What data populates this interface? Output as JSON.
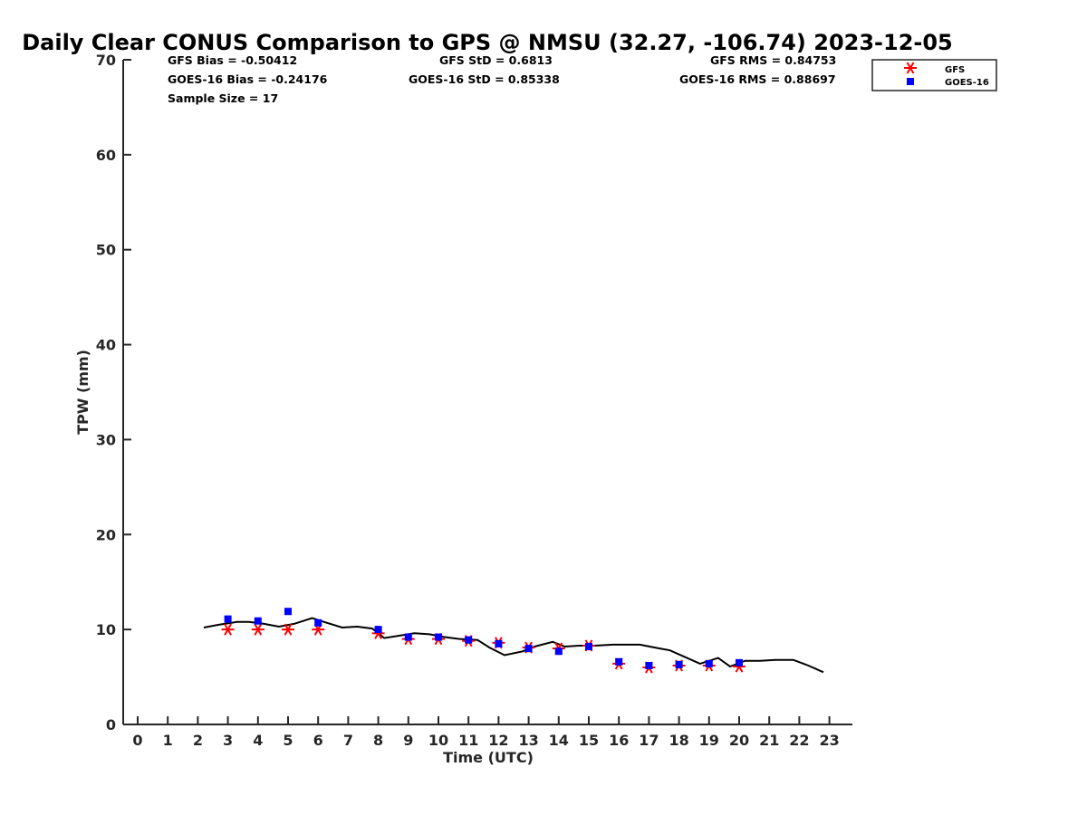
{
  "title": "Daily Clear CONUS Comparison to GPS @ NMSU (32.27, -106.74) 2023-12-05",
  "stats": {
    "gfs_bias": "GFS Bias = -0.50412",
    "goes_bias": "GOES-16 Bias = -0.24176",
    "sample_size": "Sample Size = 17",
    "gfs_std": "GFS StD = 0.6813",
    "goes_std": "GOES-16 StD = 0.85338",
    "gfs_rms": "GFS RMS = 0.84753",
    "goes_rms": "GOES-16 RMS = 0.88697"
  },
  "colors": {
    "gfs": "#ff0000",
    "goes": "#0000ff",
    "gps": "#000000",
    "axis": "#262626"
  },
  "legend": {
    "gfs": "GFS",
    "goes": "GOES-16",
    "placement": "top-right, outside"
  },
  "chart_data": {
    "type": "line",
    "xlabel": "Time (UTC)",
    "ylabel": "TPW (mm)",
    "xlim": [
      -0.5,
      23.7
    ],
    "ylim": [
      0,
      70
    ],
    "xticks": [
      "0",
      "1",
      "2",
      "3",
      "4",
      "5",
      "6",
      "7",
      "8",
      "9",
      "10",
      "11",
      "12",
      "13",
      "14",
      "15",
      "16",
      "17",
      "18",
      "19",
      "20",
      "21",
      "22",
      "23"
    ],
    "yticks": [
      "0",
      "10",
      "20",
      "30",
      "40",
      "50",
      "60",
      "70"
    ],
    "grid": false,
    "series": [
      {
        "marker": "line",
        "x": [
          2.2,
          2.7,
          3.3,
          3.7,
          4.2,
          4.7,
          5.2,
          5.8,
          6.2,
          6.8,
          7.3,
          7.8,
          8.2,
          8.6,
          9.2,
          9.7,
          10.2,
          10.7,
          11.3,
          11.7,
          12.2,
          12.8,
          13.2,
          13.8,
          14.2,
          14.7,
          15.2,
          15.8,
          16.2,
          16.7,
          17.2,
          17.7,
          18.2,
          18.7,
          19.3,
          19.7,
          20.2,
          20.7,
          21.2,
          21.8,
          22.3,
          22.8
        ],
        "y": [
          10.2,
          10.5,
          10.8,
          10.8,
          10.6,
          10.3,
          10.6,
          11.2,
          10.8,
          10.2,
          10.3,
          10.1,
          9.1,
          9.3,
          9.6,
          9.5,
          9.2,
          9.0,
          8.9,
          8.1,
          7.3,
          7.7,
          8.2,
          8.7,
          8.2,
          8.3,
          8.3,
          8.4,
          8.4,
          8.4,
          8.1,
          7.8,
          7.1,
          6.4,
          7.0,
          6.1,
          6.7,
          6.7,
          6.8,
          6.8,
          6.2,
          5.5
        ]
      },
      {
        "name": "GFS",
        "marker": "asterisk",
        "x": [
          3,
          4,
          5,
          6,
          8,
          9,
          10,
          11,
          12,
          13,
          14,
          15,
          16,
          17,
          18,
          19,
          20
        ],
        "y": [
          10.0,
          10.0,
          10.0,
          10.0,
          9.6,
          9.0,
          9.0,
          8.8,
          8.6,
          8.1,
          8.0,
          8.3,
          6.4,
          6.0,
          6.2,
          6.2,
          6.1
        ]
      },
      {
        "name": "GOES-16",
        "marker": "square",
        "x": [
          3,
          4,
          5,
          6,
          8,
          9,
          10,
          11,
          12,
          13,
          14,
          15,
          16,
          17,
          18,
          19,
          20
        ],
        "y": [
          11.1,
          10.9,
          11.9,
          10.7,
          10.0,
          9.2,
          9.2,
          8.9,
          8.5,
          8.0,
          7.7,
          8.2,
          6.6,
          6.2,
          6.3,
          6.4,
          6.5
        ]
      }
    ]
  }
}
